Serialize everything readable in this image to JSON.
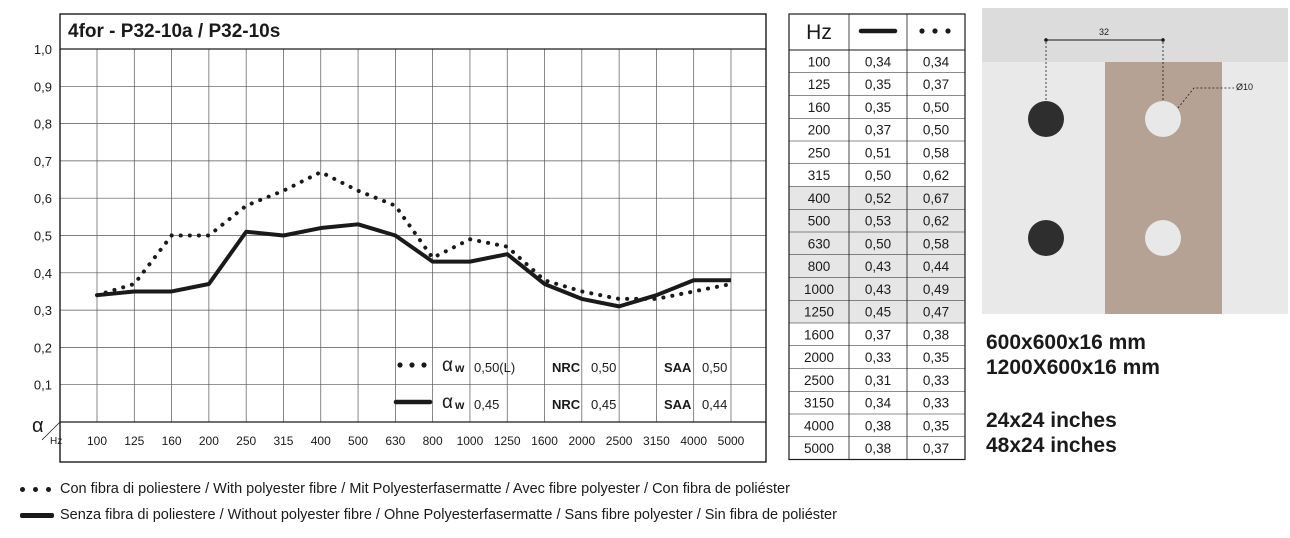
{
  "chart_data": {
    "type": "line",
    "title": "4for - P32-10a / P32-10s",
    "ylabel": "α",
    "xlabel": "Hz",
    "ylim": [
      0,
      1.0
    ],
    "y_ticks": [
      "0,1",
      "0,2",
      "0,3",
      "0,4",
      "0,5",
      "0,6",
      "0,7",
      "0,8",
      "0,9",
      "1,0"
    ],
    "categories": [
      "100",
      "125",
      "160",
      "200",
      "250",
      "315",
      "400",
      "500",
      "630",
      "800",
      "1000",
      "1250",
      "1600",
      "2000",
      "2500",
      "3150",
      "4000",
      "5000"
    ],
    "grid": true,
    "series": [
      {
        "style": "dotted",
        "values": [
          0.34,
          0.37,
          0.5,
          0.5,
          0.58,
          0.62,
          0.67,
          0.62,
          0.58,
          0.44,
          0.49,
          0.47,
          0.38,
          0.35,
          0.33,
          0.33,
          0.35,
          0.37
        ]
      },
      {
        "style": "solid",
        "values": [
          0.34,
          0.35,
          0.35,
          0.37,
          0.51,
          0.5,
          0.52,
          0.53,
          0.5,
          0.43,
          0.43,
          0.45,
          0.37,
          0.33,
          0.31,
          0.34,
          0.38,
          0.38
        ]
      }
    ],
    "legend": {
      "placement": "bottom-right",
      "rows": [
        {
          "style": "dotted",
          "alpha_label": "α",
          "alpha_sub": "w",
          "alpha_value": "0,50(L)",
          "nrc_label": "NRC",
          "nrc_value": "0,50",
          "saa_label": "SAA",
          "saa_value": "0,50"
        },
        {
          "style": "solid",
          "alpha_label": "α",
          "alpha_sub": "w",
          "alpha_value": "0,45",
          "nrc_label": "NRC",
          "nrc_value": "0,45",
          "saa_label": "SAA",
          "saa_value": "0,44"
        }
      ]
    }
  },
  "table": {
    "header": "Hz",
    "rows": [
      [
        "100",
        "0,34",
        "0,34"
      ],
      [
        "125",
        "0,35",
        "0,37"
      ],
      [
        "160",
        "0,35",
        "0,50"
      ],
      [
        "200",
        "0,37",
        "0,50"
      ],
      [
        "250",
        "0,51",
        "0,58"
      ],
      [
        "315",
        "0,50",
        "0,62"
      ],
      [
        "400",
        "0,52",
        "0,67"
      ],
      [
        "500",
        "0,53",
        "0,62"
      ],
      [
        "630",
        "0,50",
        "0,58"
      ],
      [
        "800",
        "0,43",
        "0,44"
      ],
      [
        "1000",
        "0,43",
        "0,49"
      ],
      [
        "1250",
        "0,45",
        "0,47"
      ],
      [
        "1600",
        "0,37",
        "0,38"
      ],
      [
        "2000",
        "0,33",
        "0,35"
      ],
      [
        "2500",
        "0,31",
        "0,33"
      ],
      [
        "3150",
        "0,34",
        "0,33"
      ],
      [
        "4000",
        "0,38",
        "0,35"
      ],
      [
        "5000",
        "0,38",
        "0,37"
      ]
    ],
    "highlighted_rows": [
      6,
      7,
      8,
      9,
      10,
      11
    ],
    "highlight_color": "#e6e6e6"
  },
  "diagram": {
    "dimension_label": "32",
    "hole_label": "Ø10",
    "colors": {
      "background": "#dcdcdc",
      "panel": "#b5a294",
      "light": "#e9e9e9",
      "dark_hole": "#2e2e2e",
      "light_hole": "#e8e8e8"
    }
  },
  "sizes": {
    "metric_1": "600x600x16 mm",
    "metric_2": "1200X600x16 mm",
    "imperial_1": "24x24 inches",
    "imperial_2": "48x24 inches"
  },
  "footnotes": {
    "dotted": "Con fibra di poliestere / With polyester fibre / Mit Polyesterfasermatte / Avec fibre polyester / Con fibra de poliéster",
    "solid": "Senza fibra di poliestere / Without polyester fibre / Ohne Polyesterfasermatte / Sans fibre polyester / Sin fibra de poliéster"
  }
}
